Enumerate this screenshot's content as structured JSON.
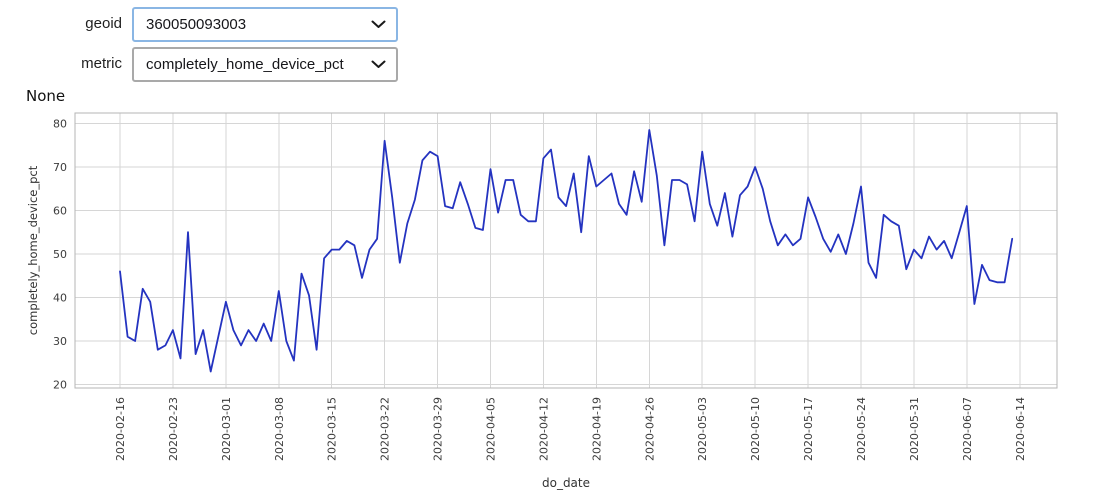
{
  "controls": {
    "geoid": {
      "label": "geoid",
      "value": "360050093003"
    },
    "metric": {
      "label": "metric",
      "value": "completely_home_device_pct"
    }
  },
  "icons": {
    "geoid_chevron": "chevron-down",
    "metric_chevron": "chevron-down"
  },
  "colors": {
    "line": "#2433c0",
    "grid": "#d6d6d6",
    "plot_border": "#b5b5b5",
    "focus_border": "#8ab6e4"
  },
  "chart_data": {
    "type": "line",
    "title": "None",
    "xlabel": "do_date",
    "ylabel": "completely_home_device_pct",
    "x_start_date": "2020-02-16",
    "x_frequency": "daily",
    "x_tick_labels": [
      "2020-02-16",
      "2020-02-23",
      "2020-03-01",
      "2020-03-08",
      "2020-03-15",
      "2020-03-22",
      "2020-03-29",
      "2020-04-05",
      "2020-04-12",
      "2020-04-19",
      "2020-04-26",
      "2020-05-03",
      "2020-05-10",
      "2020-05-17",
      "2020-05-24",
      "2020-05-31",
      "2020-06-07",
      "2020-06-14"
    ],
    "x_tick_step_days": 7,
    "y_ticks": [
      20,
      30,
      40,
      50,
      60,
      70,
      80
    ],
    "ylim": [
      19.2,
      82.4
    ],
    "grid": true,
    "legend": false,
    "line_color": "#2433c0",
    "values": [
      46,
      31,
      30,
      42,
      39,
      28,
      29,
      32.5,
      26,
      55,
      27,
      32.5,
      23,
      31,
      39,
      32.5,
      29,
      32.5,
      30,
      34,
      30,
      41.5,
      30,
      25.5,
      45.5,
      40.5,
      28,
      49,
      51,
      51,
      53,
      52,
      44.5,
      51,
      53.5,
      76,
      63,
      48,
      57,
      62.5,
      71.5,
      73.5,
      72.5,
      61,
      60.5,
      66.5,
      61.5,
      56,
      55.5,
      69.5,
      59.5,
      67,
      67,
      59,
      57.5,
      57.5,
      72,
      74,
      63,
      61,
      68.5,
      55,
      72.5,
      65.5,
      67,
      68.5,
      61.5,
      59,
      69,
      62,
      78.5,
      68,
      52,
      67,
      67,
      66,
      57.5,
      73.5,
      61.5,
      56.5,
      64,
      54,
      63.5,
      65.5,
      70,
      65,
      57.5,
      52,
      54.5,
      52,
      53.5,
      63,
      58.5,
      53.5,
      50.5,
      54.5,
      50,
      57,
      65.5,
      48,
      44.5,
      59,
      57.5,
      56.5,
      46.5,
      51,
      49,
      54,
      51,
      53,
      49,
      55,
      61,
      38.5,
      47.5,
      44,
      43.5,
      43.5,
      53.5
    ]
  }
}
